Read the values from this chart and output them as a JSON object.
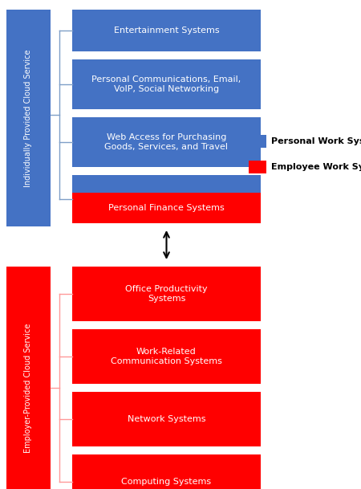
{
  "blue_color": "#4472C4",
  "red_color": "#FF0000",
  "white_text": "#FFFFFF",
  "black_text": "#000000",
  "bg_color": "#FFFFFF",
  "line_blue": "#7F9FC7",
  "line_red": "#FF9999",
  "top_sidebar_label": "Individually Provided Cloud Service",
  "bottom_sidebar_label": "Employer-Provided Cloud Service",
  "blue_boxes": [
    "Entertainment Systems",
    "Personal Communications, Email,\nVoIP, Social Networking",
    "Web Access for Purchasing\nGoods, Services, and Travel"
  ],
  "mixed_box_label": "Personal Finance Systems",
  "red_boxes": [
    "Office Productivity\nSystems",
    "Work-Related\nCommunication Systems",
    "Network Systems",
    "Computing Systems"
  ],
  "legend_blue_label": "Personal Work System",
  "legend_red_label": "Employee Work System",
  "figsize": [
    4.5,
    6.09
  ],
  "dpi": 100
}
